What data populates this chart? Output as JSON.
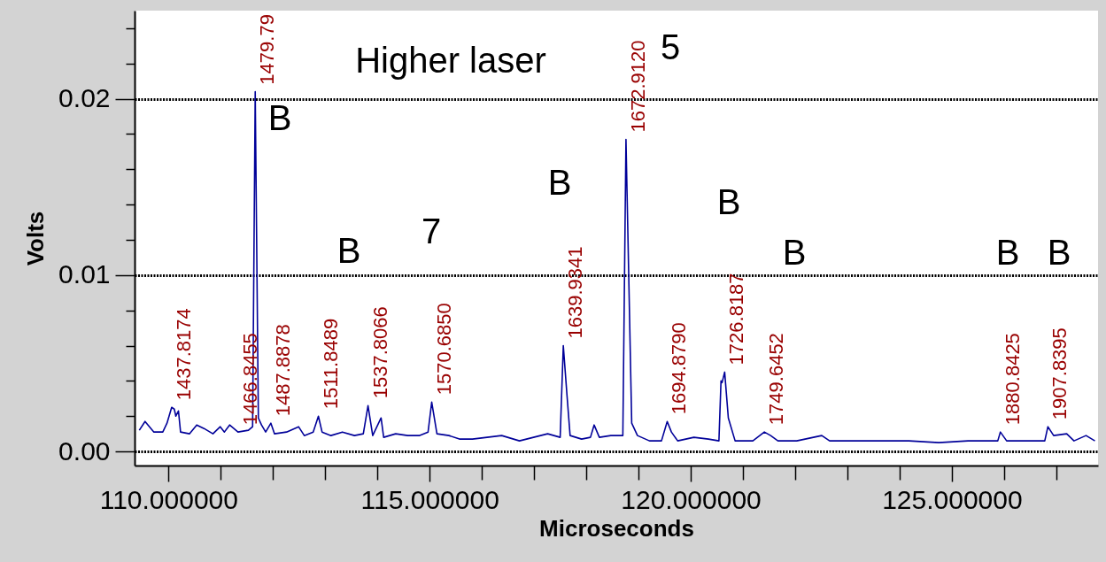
{
  "chart_data": {
    "type": "line",
    "xlabel": "Microseconds",
    "ylabel": "Volts",
    "x": [
      109.44,
      109.55,
      109.72,
      109.89,
      109.97,
      110.06,
      110.11,
      110.14,
      110.19,
      110.23,
      110.4,
      110.54,
      110.68,
      110.85,
      110.99,
      111.07,
      111.17,
      111.33,
      111.53,
      111.61,
      111.66,
      111.72,
      111.78,
      111.86,
      111.96,
      112.03,
      112.26,
      112.49,
      112.6,
      112.77,
      112.87,
      112.94,
      113.11,
      113.33,
      113.56,
      113.73,
      113.82,
      113.91,
      114.07,
      114.12,
      114.35,
      114.58,
      114.8,
      114.97,
      115.04,
      115.14,
      115.37,
      115.57,
      115.82,
      116.38,
      116.72,
      117.26,
      117.5,
      117.56,
      117.63,
      117.69,
      117.91,
      118.08,
      118.15,
      118.25,
      118.47,
      118.7,
      118.76,
      118.87,
      118.98,
      119.21,
      119.44,
      119.55,
      119.63,
      119.75,
      120.06,
      120.34,
      120.54,
      120.58,
      120.6,
      120.65,
      120.72,
      120.85,
      121.19,
      121.41,
      121.53,
      121.67,
      122.03,
      122.51,
      122.66,
      123.33,
      124.18,
      124.75,
      125.31,
      125.88,
      125.93,
      126.05,
      126.44,
      126.78,
      126.84,
      126.95,
      127.2,
      127.34,
      127.57,
      127.74
    ],
    "series": [
      {
        "color": "#000099",
        "values": [
          0.0012,
          0.0017,
          0.0011,
          0.0011,
          0.0016,
          0.0025,
          0.0024,
          0.002,
          0.0023,
          0.0011,
          0.001,
          0.0015,
          0.0013,
          0.001,
          0.0014,
          0.0011,
          0.0015,
          0.0011,
          0.0012,
          0.0014,
          0.0204,
          0.0019,
          0.0015,
          0.0011,
          0.0016,
          0.001,
          0.0011,
          0.0014,
          0.0009,
          0.0011,
          0.002,
          0.0011,
          0.0009,
          0.0011,
          0.0009,
          0.001,
          0.0026,
          0.0009,
          0.0019,
          0.0008,
          0.001,
          0.0009,
          0.0009,
          0.0011,
          0.0028,
          0.001,
          0.0009,
          0.0007,
          0.0007,
          0.0009,
          0.0006,
          0.001,
          0.0008,
          0.006,
          0.0032,
          0.0009,
          0.0007,
          0.0008,
          0.0015,
          0.0008,
          0.0009,
          0.0009,
          0.0177,
          0.0016,
          0.0009,
          0.0006,
          0.0006,
          0.0017,
          0.0011,
          0.0006,
          0.0008,
          0.0007,
          0.0006,
          0.004,
          0.0039,
          0.0045,
          0.0019,
          0.0006,
          0.0006,
          0.0011,
          0.0009,
          0.0006,
          0.0006,
          0.0009,
          0.0006,
          0.0006,
          0.0006,
          0.0005,
          0.0006,
          0.0006,
          0.0011,
          0.0006,
          0.0006,
          0.0006,
          0.0014,
          0.0009,
          0.001,
          0.0006,
          0.0009,
          0.0006
        ]
      }
    ],
    "xlim": [
      109.35,
      127.8
    ],
    "xticks": [
      {
        "value": 110,
        "label": "110.000000"
      },
      {
        "value": 111,
        "label": null
      },
      {
        "value": 112,
        "label": null
      },
      {
        "value": 113,
        "label": null
      },
      {
        "value": 114,
        "label": null
      },
      {
        "value": 115,
        "label": "115.000000"
      },
      {
        "value": 116,
        "label": null
      },
      {
        "value": 117,
        "label": null
      },
      {
        "value": 118,
        "label": null
      },
      {
        "value": 119,
        "label": null
      },
      {
        "value": 120,
        "label": "120.000000"
      },
      {
        "value": 121,
        "label": null
      },
      {
        "value": 122,
        "label": null
      },
      {
        "value": 123,
        "label": null
      },
      {
        "value": 124,
        "label": null
      },
      {
        "value": 125,
        "label": "125.000000"
      },
      {
        "value": 126,
        "label": null
      },
      {
        "value": 127,
        "label": null
      }
    ],
    "ylim": [
      -0.0008,
      0.025
    ],
    "yticks": [
      {
        "value": 0,
        "label": "0.00"
      },
      {
        "value": 0.002,
        "label": null
      },
      {
        "value": 0.004,
        "label": null
      },
      {
        "value": 0.006,
        "label": null
      },
      {
        "value": 0.008,
        "label": null
      },
      {
        "value": 0.01,
        "label": "0.01"
      },
      {
        "value": 0.012,
        "label": null
      },
      {
        "value": 0.014,
        "label": null
      },
      {
        "value": 0.016,
        "label": null
      },
      {
        "value": 0.018,
        "label": null
      },
      {
        "value": 0.02,
        "label": "0.02"
      },
      {
        "value": 0.022,
        "label": null
      },
      {
        "value": 0.024,
        "label": null
      }
    ],
    "grid": "y",
    "marker": "none",
    "line_style": "solid",
    "annotations": [
      {
        "text": "1437.8174",
        "x": 110.06,
        "y": 0.0025
      },
      {
        "text": "1466.8455",
        "x": 111.33,
        "y": 0.0011
      },
      {
        "text": "1479.79",
        "x": 111.66,
        "y": 0.0204
      },
      {
        "text": "1487.8878",
        "x": 111.96,
        "y": 0.0016
      },
      {
        "text": "1511.8489",
        "x": 112.87,
        "y": 0.002
      },
      {
        "text": "1537.8066",
        "x": 113.82,
        "y": 0.0026
      },
      {
        "text": "1570.6850",
        "x": 115.04,
        "y": 0.0028
      },
      {
        "text": "1639.9341",
        "x": 117.56,
        "y": 0.006
      },
      {
        "text": "1672.9120",
        "x": 118.76,
        "y": 0.0177
      },
      {
        "text": "1694.8790",
        "x": 119.55,
        "y": 0.0017
      },
      {
        "text": "1726.8187",
        "x": 120.65,
        "y": 0.0045
      },
      {
        "text": "1749.6452",
        "x": 121.41,
        "y": 0.0011
      },
      {
        "text": "1880.8425",
        "x": 125.93,
        "y": 0.0011
      },
      {
        "text": "1907.8395",
        "x": 126.84,
        "y": 0.0014
      },
      "Higher laser",
      "5",
      "7",
      "B",
      "B",
      "B",
      "B",
      "B",
      "B",
      "B"
    ]
  }
}
